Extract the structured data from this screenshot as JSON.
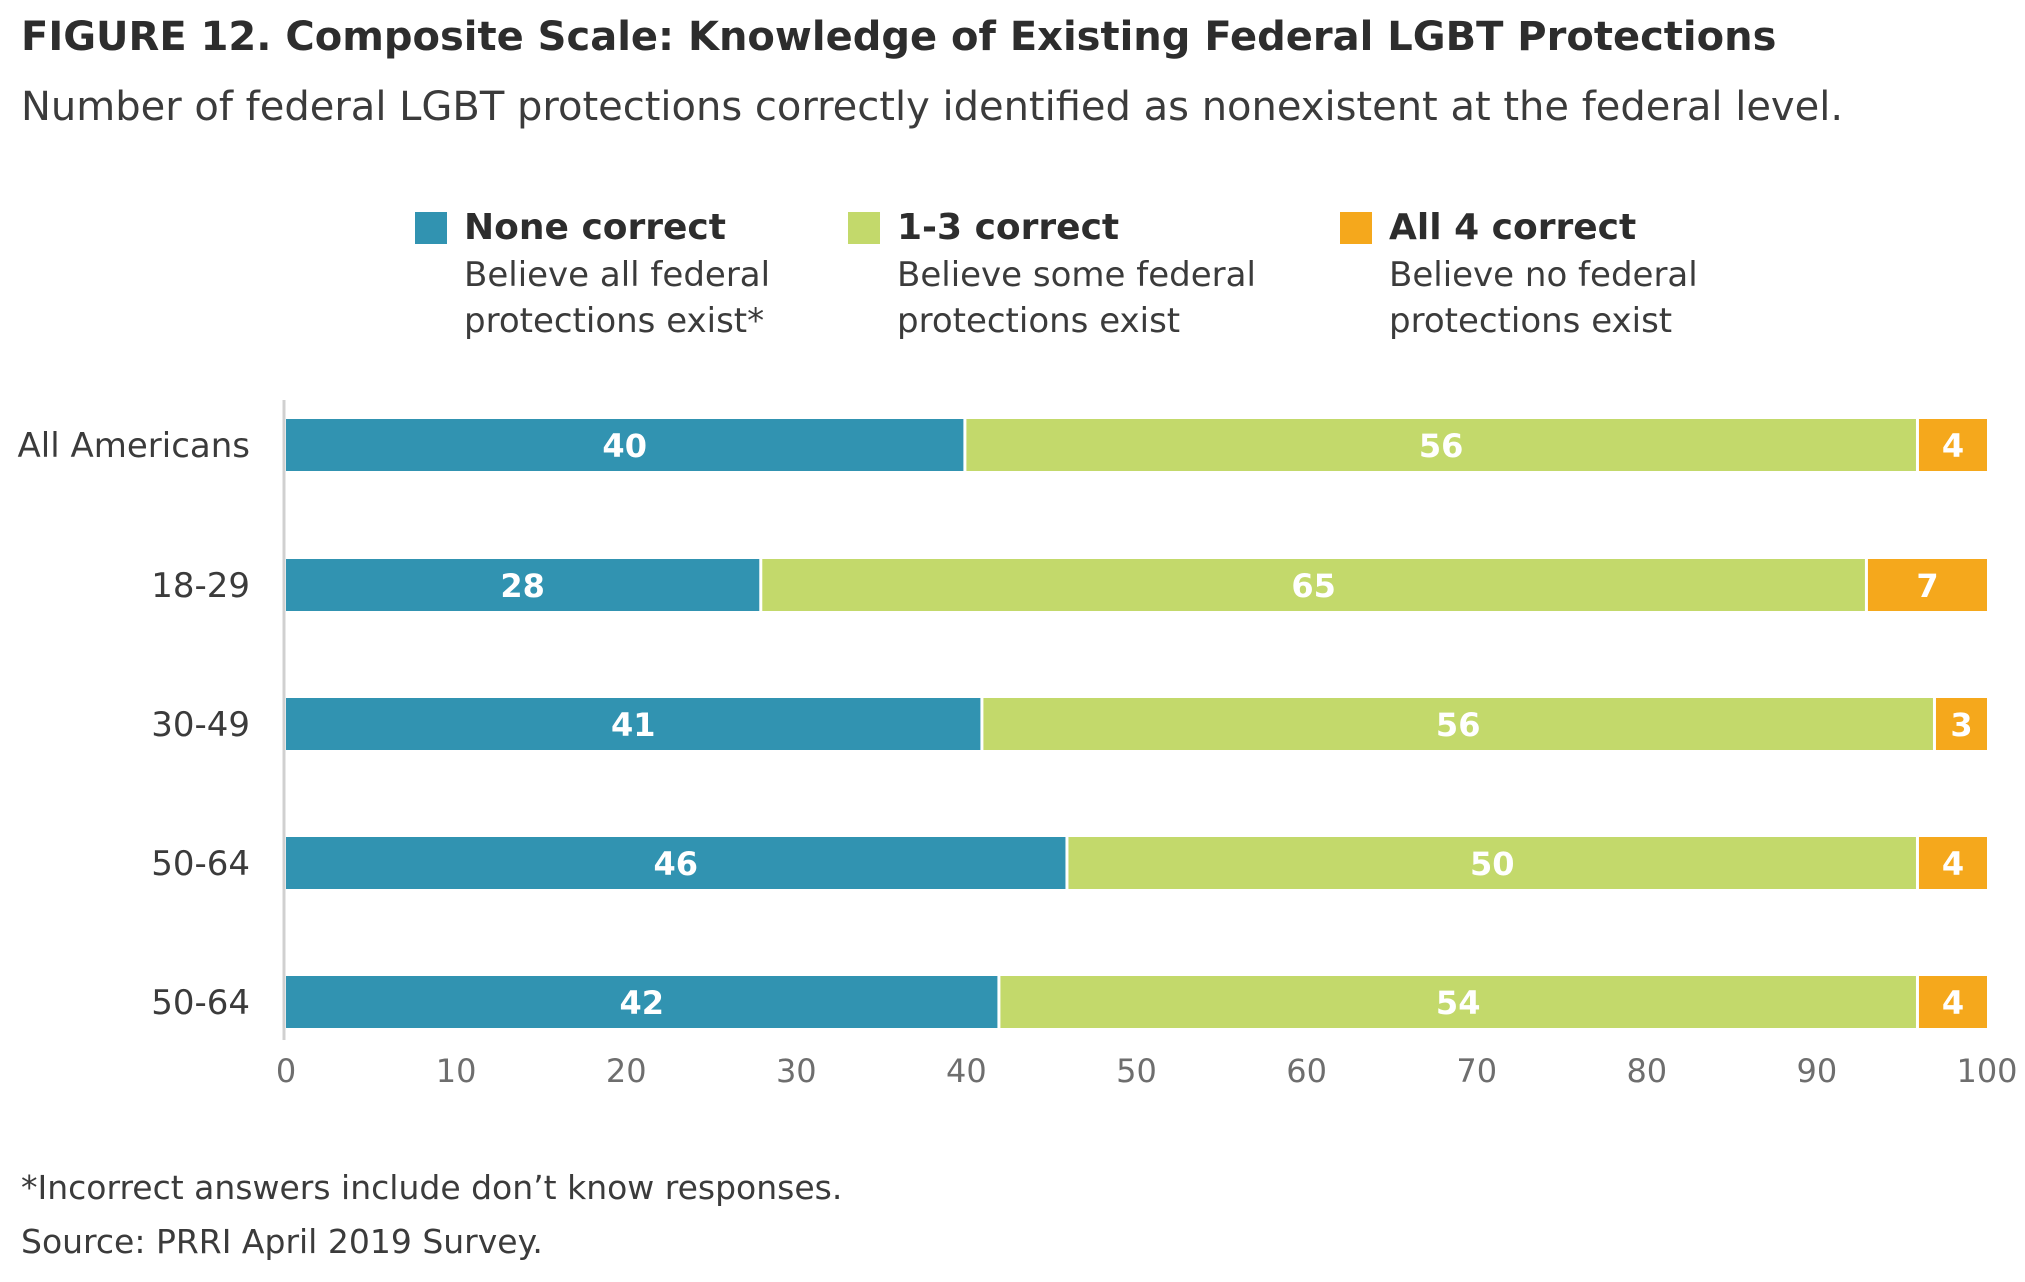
{
  "chart_data": {
    "type": "bar",
    "orientation": "horizontal",
    "stacked": true,
    "title": "FIGURE 12. Composite Scale: Knowledge of Existing Federal LGBT Protections",
    "subtitle": "Number of federal LGBT protections correctly identified as nonexistent at the federal level.",
    "categories": [
      "All Americans",
      "18-29",
      "30-49",
      "50-64",
      "50-64"
    ],
    "series": [
      {
        "name": "None correct",
        "description": [
          "Believe all federal",
          "protections exist*"
        ],
        "color": "#3193b1",
        "values": [
          40,
          28,
          41,
          46,
          42
        ]
      },
      {
        "name": "1-3 correct",
        "description": [
          "Believe some federal",
          "protections exist"
        ],
        "color": "#c3d96b",
        "values": [
          56,
          65,
          56,
          50,
          54
        ]
      },
      {
        "name": "All 4 correct",
        "description": [
          "Believe no federal",
          "protections exist"
        ],
        "color": "#f5a81c",
        "values": [
          4,
          7,
          3,
          4,
          4
        ]
      }
    ],
    "xlim": [
      0,
      100
    ],
    "xticks": [
      0,
      10,
      20,
      30,
      40,
      50,
      60,
      70,
      80,
      90,
      100
    ],
    "grid": false,
    "legend": "top",
    "footnote": "*Incorrect answers include don’t know responses.",
    "source": "Source: PRRI April 2019 Survey."
  }
}
